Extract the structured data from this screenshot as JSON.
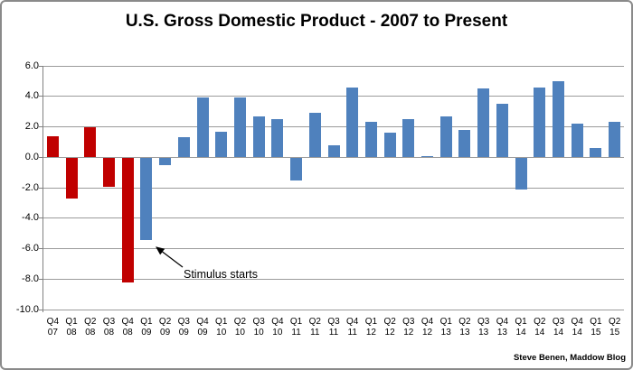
{
  "attribution": "Steve Benen, Maddow Blog",
  "colors": {
    "red": "#C00000",
    "blue": "#4F81BD",
    "gridline": "#9b9b9b",
    "axis": "#808080"
  },
  "chart_data": {
    "type": "bar",
    "title": "U.S. Gross Domestic Product - 2007 to Present",
    "xlabel": "",
    "ylabel": "",
    "grid": true,
    "ylim": [
      -10,
      6
    ],
    "ytick_values": [
      6,
      4,
      2,
      0,
      -2,
      -4,
      -6,
      -8,
      -10
    ],
    "ytick_labels": [
      "6.0",
      "4.0",
      "2.0",
      "0.0",
      "-2.0",
      "-4.0",
      "-6.0",
      "-8.0",
      "-10.0"
    ],
    "categories": [
      {
        "quarter": "Q4",
        "year": "07"
      },
      {
        "quarter": "Q1",
        "year": "08"
      },
      {
        "quarter": "Q2",
        "year": "08"
      },
      {
        "quarter": "Q3",
        "year": "08"
      },
      {
        "quarter": "Q4",
        "year": "08"
      },
      {
        "quarter": "Q1",
        "year": "09"
      },
      {
        "quarter": "Q2",
        "year": "09"
      },
      {
        "quarter": "Q3",
        "year": "09"
      },
      {
        "quarter": "Q4",
        "year": "09"
      },
      {
        "quarter": "Q1",
        "year": "10"
      },
      {
        "quarter": "Q2",
        "year": "10"
      },
      {
        "quarter": "Q3",
        "year": "10"
      },
      {
        "quarter": "Q4",
        "year": "10"
      },
      {
        "quarter": "Q1",
        "year": "11"
      },
      {
        "quarter": "Q2",
        "year": "11"
      },
      {
        "quarter": "Q3",
        "year": "11"
      },
      {
        "quarter": "Q4",
        "year": "11"
      },
      {
        "quarter": "Q1",
        "year": "12"
      },
      {
        "quarter": "Q2",
        "year": "12"
      },
      {
        "quarter": "Q3",
        "year": "12"
      },
      {
        "quarter": "Q4",
        "year": "12"
      },
      {
        "quarter": "Q1",
        "year": "13"
      },
      {
        "quarter": "Q2",
        "year": "13"
      },
      {
        "quarter": "Q3",
        "year": "13"
      },
      {
        "quarter": "Q4",
        "year": "13"
      },
      {
        "quarter": "Q1",
        "year": "14"
      },
      {
        "quarter": "Q2",
        "year": "14"
      },
      {
        "quarter": "Q3",
        "year": "14"
      },
      {
        "quarter": "Q4",
        "year": "14"
      },
      {
        "quarter": "Q1",
        "year": "15"
      },
      {
        "quarter": "Q2",
        "year": "15"
      }
    ],
    "values": [
      1.4,
      -2.7,
      2.0,
      -1.9,
      -8.2,
      -5.4,
      -0.5,
      1.3,
      3.9,
      1.7,
      3.9,
      2.7,
      2.5,
      -1.5,
      2.9,
      0.8,
      4.6,
      2.3,
      1.6,
      2.5,
      0.1,
      2.7,
      1.8,
      4.5,
      3.5,
      -2.1,
      4.6,
      5.0,
      2.2,
      0.6,
      2.3
    ],
    "point_colors": [
      "red",
      "red",
      "red",
      "red",
      "red",
      "blue",
      "blue",
      "blue",
      "blue",
      "blue",
      "blue",
      "blue",
      "blue",
      "blue",
      "blue",
      "blue",
      "blue",
      "blue",
      "blue",
      "blue",
      "blue",
      "blue",
      "blue",
      "blue",
      "blue",
      "blue",
      "blue",
      "blue",
      "blue",
      "blue",
      "blue"
    ],
    "annotation": {
      "text": "Stimulus starts",
      "points_to": "Q1 09"
    }
  }
}
